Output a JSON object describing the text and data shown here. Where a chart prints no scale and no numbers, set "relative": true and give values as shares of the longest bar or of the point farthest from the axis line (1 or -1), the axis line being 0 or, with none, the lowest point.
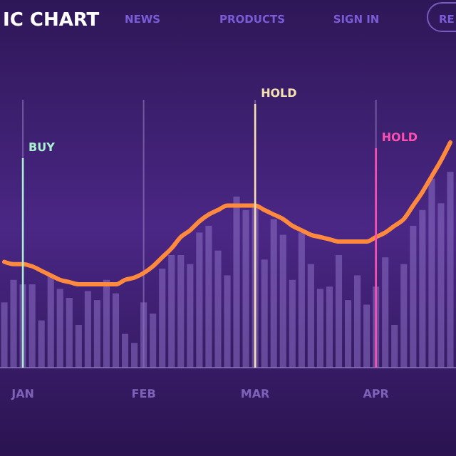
{
  "chart_data": {
    "type": "bar",
    "title": "IC CHART",
    "relative": true,
    "grid": "x",
    "annotations": [
      "NEWS",
      "PRODUCTS",
      "SIGN IN",
      "RE"
    ],
    "categories": [
      null,
      null,
      "JAN",
      null,
      null,
      null,
      null,
      null,
      null,
      null,
      null,
      null,
      null,
      null,
      null,
      "FEB",
      null,
      null,
      null,
      null,
      null,
      null,
      null,
      null,
      null,
      null,
      null,
      "MAR",
      null,
      null,
      null,
      null,
      null,
      null,
      null,
      null,
      null,
      null,
      null,
      null,
      "APR",
      null,
      null,
      null,
      null,
      null,
      null,
      null,
      null
    ],
    "series": [
      {
        "color": "#8d70c4",
        "values": [
          0.29,
          0.39,
          0.37,
          0.37,
          0.21,
          0.41,
          0.35,
          0.31,
          0.19,
          0.34,
          0.3,
          0.39,
          0.33,
          0.15,
          0.11,
          0.29,
          0.24,
          0.44,
          0.5,
          0.5,
          0.46,
          0.6,
          0.63,
          0.52,
          0.41,
          0.76,
          0.7,
          0.72,
          0.48,
          0.66,
          0.59,
          0.39,
          0.6,
          0.46,
          0.35,
          0.36,
          0.5,
          0.3,
          0.41,
          0.28,
          0.36,
          0.49,
          0.19,
          0.46,
          0.63,
          0.7,
          0.84,
          0.73,
          0.87
        ]
      },
      {
        "type": "line",
        "color": "#ff8a3d",
        "values": [
          0.47,
          0.46,
          0.46,
          0.45,
          0.43,
          0.41,
          0.39,
          0.38,
          0.37,
          0.37,
          0.37,
          0.37,
          0.37,
          0.39,
          0.4,
          0.42,
          0.45,
          0.49,
          0.53,
          0.58,
          0.61,
          0.65,
          0.68,
          0.7,
          0.72,
          0.72,
          0.72,
          0.72,
          0.7,
          0.68,
          0.66,
          0.63,
          0.61,
          0.59,
          0.58,
          0.57,
          0.56,
          0.56,
          0.56,
          0.56,
          0.58,
          0.6,
          0.63,
          0.66,
          0.72,
          0.78,
          0.85,
          0.92,
          1.0
        ]
      }
    ],
    "ref_lines": [
      {
        "axis": "x",
        "value": "JAN",
        "label": "BUY",
        "color": "#a8f0d0"
      },
      {
        "axis": "x",
        "value": "MAR",
        "label": "HOLD",
        "color": "#f5e0b0"
      },
      {
        "axis": "x",
        "value": "APR",
        "label": "HOLD",
        "color": "#ff4fb0"
      }
    ]
  }
}
